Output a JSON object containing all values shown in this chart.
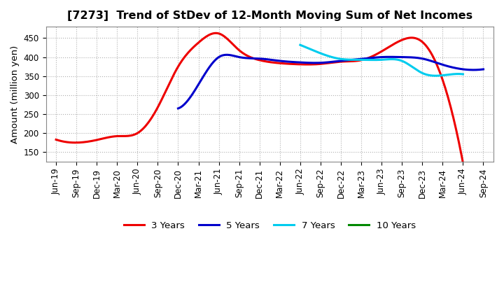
{
  "title": "[7273]  Trend of StDev of 12-Month Moving Sum of Net Incomes",
  "ylabel": "Amount (million yen)",
  "background_color": "#ffffff",
  "grid_color": "#b0b0b0",
  "title_fontsize": 11.5,
  "label_fontsize": 9.5,
  "tick_fontsize": 8.5,
  "series": [
    {
      "name": "3 Years",
      "color": "#ee0000",
      "x": [
        0,
        1,
        2,
        3,
        4,
        5,
        6,
        7,
        8,
        9,
        10,
        11,
        12,
        13,
        14,
        15,
        16,
        17,
        18,
        19,
        20
      ],
      "y": [
        183,
        175,
        182,
        192,
        200,
        268,
        375,
        438,
        462,
        418,
        392,
        384,
        381,
        382,
        388,
        392,
        415,
        445,
        440,
        340,
        122
      ]
    },
    {
      "name": "5 Years",
      "color": "#0000cc",
      "x": [
        6,
        7,
        8,
        9,
        10,
        11,
        12,
        13,
        14,
        15,
        16,
        17,
        18,
        19,
        20,
        21
      ],
      "y": [
        265,
        328,
        400,
        400,
        396,
        390,
        386,
        385,
        390,
        395,
        400,
        400,
        396,
        380,
        368,
        368
      ]
    },
    {
      "name": "7 Years",
      "color": "#00ccee",
      "x": [
        12,
        13,
        14,
        15,
        16,
        17,
        18,
        19,
        20
      ],
      "y": [
        432,
        410,
        395,
        393,
        393,
        390,
        358,
        352,
        355
      ]
    },
    {
      "name": "10 Years",
      "color": "#008800",
      "x": [],
      "y": []
    }
  ],
  "xtick_labels": [
    "Jun-19",
    "Sep-19",
    "Dec-19",
    "Mar-20",
    "Jun-20",
    "Sep-20",
    "Dec-20",
    "Mar-21",
    "Jun-21",
    "Sep-21",
    "Dec-21",
    "Mar-22",
    "Jun-22",
    "Sep-22",
    "Dec-22",
    "Mar-23",
    "Jun-23",
    "Sep-23",
    "Dec-23",
    "Mar-24",
    "Jun-24",
    "Sep-24"
  ],
  "ylim": [
    125,
    480
  ],
  "yticks": [
    150,
    200,
    250,
    300,
    350,
    400,
    450
  ]
}
